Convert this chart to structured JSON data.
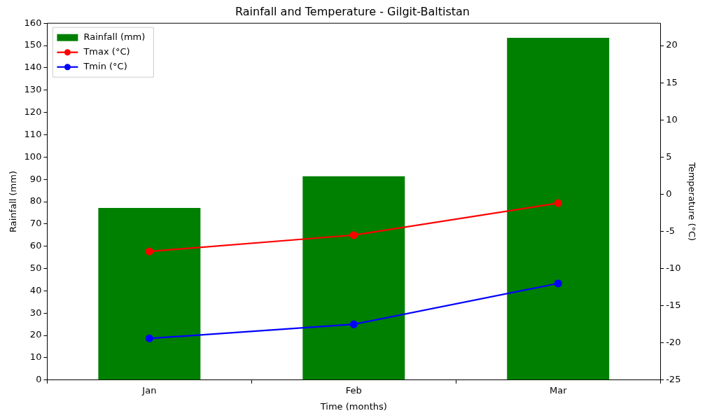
{
  "chart_data": {
    "type": "bar",
    "title": "Rainfall and Temperature - Gilgit-Baltistan",
    "xlabel": "Time (months)",
    "ylabel": "Rainfall (mm)",
    "y2label": "Temperature (°C)",
    "categories": [
      "Jan",
      "Feb",
      "Mar"
    ],
    "series": [
      {
        "name": "Rainfall (mm)",
        "color": "#008000",
        "values": [
          77.2,
          91.4,
          153.5
        ]
      },
      {
        "name": "Tmax (°C)",
        "type": "line",
        "axis": "y2",
        "color": "#ff0000",
        "values": [
          -7.7,
          -5.5,
          -1.2
        ]
      },
      {
        "name": "Tmin (°C)",
        "type": "line",
        "axis": "y2",
        "color": "#0000ff",
        "values": [
          -19.4,
          -17.5,
          -12.0
        ]
      }
    ],
    "ylim": [
      0,
      160
    ],
    "yticks": [
      0,
      10,
      20,
      30,
      40,
      50,
      60,
      70,
      80,
      90,
      100,
      110,
      120,
      130,
      140,
      150,
      160
    ],
    "y2lim": [
      -25,
      23
    ],
    "y2ticks": [
      -25,
      -20,
      -15,
      -10,
      -5,
      0,
      5,
      10,
      15,
      20
    ],
    "marker": "circle",
    "line_style": "solid",
    "legend": "top left"
  }
}
